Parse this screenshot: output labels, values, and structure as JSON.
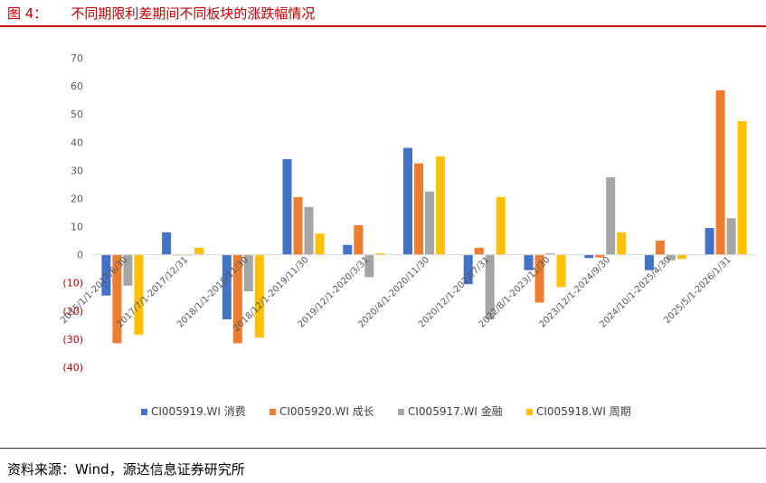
{
  "figure": {
    "number": "图 4：",
    "title": "不同期限利差期间不同板块的涨跌幅情况",
    "source": "资料来源：Wind，源达信息证券研究所"
  },
  "chart_data": {
    "type": "bar",
    "title": "不同期限利差期间不同板块的涨跌幅情况",
    "ylim": [
      -40,
      70
    ],
    "yticks": [
      70,
      60,
      50,
      40,
      30,
      20,
      10,
      0,
      -10,
      -20,
      -30,
      -40
    ],
    "ytick_labels": [
      "70",
      "60",
      "50",
      "40",
      "30",
      "20",
      "10",
      "0",
      "(10)",
      "(20)",
      "(30)",
      "(40)"
    ],
    "categories": [
      "2015/1/1-2017/6/30",
      "2017/7/1-2017/12/31",
      "2018/1/1-2018/11/30",
      "2018/12/1-2019/11/30",
      "2019/12/1-2020/3/31",
      "2020/4/1-2020/11/30",
      "2020/12/1-2022/7/31",
      "2022/8/1-2023/11/30",
      "2023/12/1-2024/9/30",
      "2024/10/1-2025/4/30",
      "2025/5/1-2026/1/31"
    ],
    "series": [
      {
        "name": "CI005919.WI 消费",
        "color": "#4472c4",
        "values": [
          -14.5,
          8,
          -23,
          34,
          3.5,
          38,
          -10.5,
          -5.5,
          -1.2,
          -5.5,
          9.5
        ]
      },
      {
        "name": "CI005920.WI 成长",
        "color": "#ed7d31",
        "values": [
          -31.5,
          0,
          -31.5,
          20.5,
          10.5,
          32.5,
          2.5,
          -17,
          -1,
          5,
          58.5
        ]
      },
      {
        "name": "CI005917.WI 金融",
        "color": "#a5a5a5",
        "values": [
          -11,
          0,
          -13,
          17,
          -8,
          22.5,
          -23,
          0.5,
          27.5,
          -2,
          13
        ]
      },
      {
        "name": "CI005918.WI 周期",
        "color": "#ffc000",
        "values": [
          -28.5,
          2.5,
          -29.5,
          7.5,
          0.5,
          35,
          20.5,
          -11.5,
          8,
          -1.5,
          47.5
        ]
      }
    ],
    "legend_position": "bottom"
  }
}
